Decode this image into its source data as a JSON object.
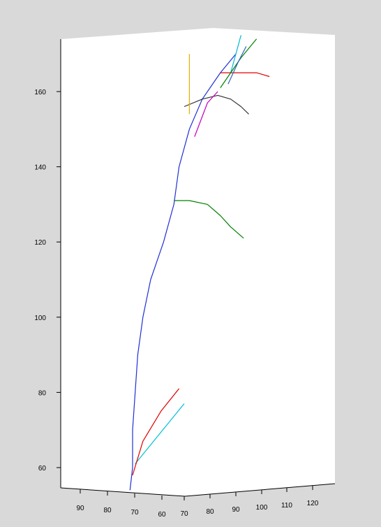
{
  "chart_data": {
    "type": "line",
    "title": "",
    "xlabel": "",
    "ylabel": "",
    "projection": "3d",
    "grid": false,
    "legend": "none",
    "zlim": [
      54,
      174
    ],
    "z_ticks": [
      60,
      80,
      100,
      120,
      140,
      160
    ],
    "x_ticks_left": [
      90,
      80,
      70,
      60
    ],
    "x_ticks_right": [
      70,
      80,
      90,
      100,
      110,
      120
    ],
    "colors": {
      "background": "#d9d9d9",
      "panel": "#ffffff",
      "axis": "#000000"
    },
    "series": [
      {
        "color": "#1f2fd6",
        "description_role": "main stem",
        "points": [
          [
            69,
            54
          ],
          [
            70,
            60
          ],
          [
            70,
            70
          ],
          [
            71,
            80
          ],
          [
            72,
            90
          ],
          [
            74,
            100
          ],
          [
            77,
            110
          ],
          [
            82,
            120
          ],
          [
            86,
            130
          ],
          [
            88,
            140
          ],
          [
            92,
            150
          ],
          [
            97,
            158
          ],
          [
            104,
            165
          ],
          [
            110,
            170
          ]
        ]
      },
      {
        "color": "#00c0d8",
        "points": [
          [
            90,
            77
          ],
          [
            71,
            61
          ]
        ]
      },
      {
        "color": "#e00000",
        "points": [
          [
            70,
            58
          ],
          [
            74,
            67
          ],
          [
            81,
            75
          ],
          [
            88,
            81
          ]
        ]
      },
      {
        "color": "#008000",
        "points": [
          [
            86,
            131
          ],
          [
            92,
            131
          ],
          [
            99,
            130
          ],
          [
            104,
            127
          ],
          [
            108,
            124
          ],
          [
            113,
            121
          ]
        ]
      },
      {
        "color": "#333333",
        "points": [
          [
            90,
            156
          ],
          [
            97,
            158
          ],
          [
            103,
            159
          ],
          [
            108,
            158
          ],
          [
            112,
            156
          ],
          [
            115,
            154
          ]
        ]
      },
      {
        "color": "#e00000",
        "points": [
          [
            104,
            165
          ],
          [
            111,
            165
          ],
          [
            118,
            165
          ],
          [
            123,
            164
          ]
        ]
      },
      {
        "color": "#e0b000",
        "points": [
          [
            92,
            170
          ],
          [
            92,
            154
          ]
        ]
      },
      {
        "color": "#c000c0",
        "points": [
          [
            94,
            148
          ],
          [
            99,
            157
          ],
          [
            103,
            160
          ]
        ]
      },
      {
        "color": "#00b8d8",
        "points": [
          [
            108,
            165
          ],
          [
            112,
            175
          ]
        ]
      },
      {
        "color": "#008000",
        "points": [
          [
            104,
            161
          ],
          [
            112,
            169
          ],
          [
            118,
            174
          ]
        ]
      },
      {
        "color": "#3060c0",
        "points": [
          [
            107,
            162
          ],
          [
            111,
            168
          ],
          [
            114,
            172
          ]
        ]
      }
    ]
  }
}
